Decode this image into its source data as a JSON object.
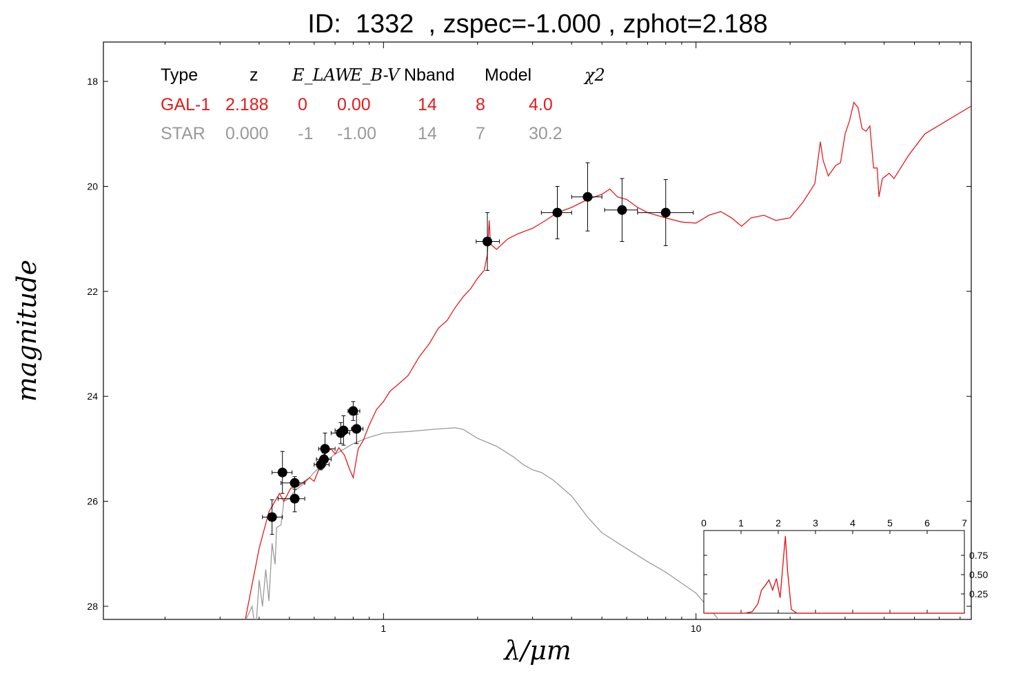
{
  "title": "ID:  1332  , zspec=-1.000 , zphot=2.188",
  "colors": {
    "galaxy": "#e31a1c",
    "star": "#999999",
    "points": "#000000"
  },
  "summary": {
    "headers": [
      "Type",
      "z",
      "E_LAW",
      "E_B-V",
      "Nband",
      "Model",
      "χ2"
    ],
    "rows": [
      {
        "values": [
          "GAL-1",
          "2.188",
          "0",
          "0.00",
          "14",
          "8",
          "4.0"
        ],
        "color": "#e31a1c"
      },
      {
        "values": [
          "STAR",
          "0.000",
          "-1",
          "-1.00",
          "14",
          "7",
          "30.2"
        ],
        "color": "#999999"
      }
    ]
  },
  "chart_data": [
    {
      "type": "line",
      "xlabel": "λ/μm",
      "ylabel": "magnitude",
      "xscale": "log",
      "xlim": [
        0.127,
        76
      ],
      "ylim": [
        28.25,
        17.25
      ],
      "y_inverted": true,
      "xticks": [
        {
          "value": 1,
          "label": "1"
        },
        {
          "value": 10,
          "label": "10"
        }
      ],
      "yticks": [
        18,
        20,
        22,
        24,
        26,
        28
      ],
      "grid": false,
      "series": [
        {
          "role": "galaxy-model",
          "color": "#e31a1c",
          "points": [
            [
              0.36,
              28.3
            ],
            [
              0.4,
              26.9
            ],
            [
              0.43,
              26.2
            ],
            [
              0.465,
              25.85
            ],
            [
              0.48,
              26.0
            ],
            [
              0.505,
              25.75
            ],
            [
              0.53,
              25.72
            ],
            [
              0.55,
              25.65
            ],
            [
              0.58,
              25.55
            ],
            [
              0.6,
              25.62
            ],
            [
              0.62,
              25.4
            ],
            [
              0.65,
              25.1
            ],
            [
              0.68,
              25.0
            ],
            [
              0.7,
              25.1
            ],
            [
              0.72,
              24.98
            ],
            [
              0.75,
              25.12
            ],
            [
              0.78,
              25.4
            ],
            [
              0.8,
              25.55
            ],
            [
              0.83,
              25.0
            ],
            [
              0.86,
              24.85
            ],
            [
              0.9,
              24.55
            ],
            [
              0.95,
              24.25
            ],
            [
              1.0,
              24.1
            ],
            [
              1.05,
              23.9
            ],
            [
              1.1,
              23.8
            ],
            [
              1.2,
              23.6
            ],
            [
              1.3,
              23.25
            ],
            [
              1.4,
              23.0
            ],
            [
              1.5,
              22.7
            ],
            [
              1.6,
              22.55
            ],
            [
              1.7,
              22.3
            ],
            [
              1.8,
              22.1
            ],
            [
              1.9,
              21.95
            ],
            [
              2.0,
              21.75
            ],
            [
              2.1,
              21.6
            ],
            [
              2.15,
              21.3
            ],
            [
              2.18,
              20.65
            ],
            [
              2.2,
              21.1
            ],
            [
              2.3,
              21.2
            ],
            [
              2.5,
              21.0
            ],
            [
              2.7,
              20.9
            ],
            [
              3.0,
              20.8
            ],
            [
              3.3,
              20.65
            ],
            [
              3.6,
              20.5
            ],
            [
              4.0,
              20.4
            ],
            [
              4.5,
              20.25
            ],
            [
              5.0,
              20.15
            ],
            [
              5.3,
              20.05
            ],
            [
              5.6,
              20.2
            ],
            [
              6.0,
              20.25
            ],
            [
              6.5,
              20.4
            ],
            [
              7.0,
              20.5
            ],
            [
              8.0,
              20.6
            ],
            [
              9.0,
              20.68
            ],
            [
              10.0,
              20.7
            ],
            [
              11.0,
              20.55
            ],
            [
              12.0,
              20.48
            ],
            [
              13.0,
              20.6
            ],
            [
              14.0,
              20.76
            ],
            [
              15.0,
              20.6
            ],
            [
              16.5,
              20.55
            ],
            [
              18.0,
              20.65
            ],
            [
              20.0,
              20.6
            ],
            [
              22.0,
              20.3
            ],
            [
              24.0,
              19.95
            ],
            [
              25.0,
              19.15
            ],
            [
              25.5,
              19.5
            ],
            [
              26.5,
              19.8
            ],
            [
              28.0,
              19.6
            ],
            [
              29.0,
              19.55
            ],
            [
              30.0,
              19.0
            ],
            [
              31.0,
              18.75
            ],
            [
              32.0,
              18.4
            ],
            [
              33.0,
              18.5
            ],
            [
              34.0,
              18.9
            ],
            [
              35.0,
              18.95
            ],
            [
              36.0,
              18.85
            ],
            [
              37.0,
              19.65
            ],
            [
              38.0,
              19.65
            ],
            [
              38.5,
              20.2
            ],
            [
              39.5,
              19.85
            ],
            [
              40.5,
              19.8
            ],
            [
              41.5,
              19.75
            ],
            [
              43.0,
              19.85
            ],
            [
              48.0,
              19.4
            ],
            [
              54.0,
              19.0
            ],
            [
              76.0,
              18.47
            ]
          ]
        },
        {
          "role": "star-model",
          "color": "#999999",
          "points": [
            [
              0.36,
              28.3
            ],
            [
              0.38,
              28.0
            ],
            [
              0.39,
              28.5
            ],
            [
              0.4,
              27.5
            ],
            [
              0.41,
              28.0
            ],
            [
              0.42,
              27.3
            ],
            [
              0.43,
              27.9
            ],
            [
              0.44,
              26.8
            ],
            [
              0.45,
              27.2
            ],
            [
              0.455,
              26.5
            ],
            [
              0.47,
              26.45
            ],
            [
              0.48,
              26.0
            ],
            [
              0.5,
              25.95
            ],
            [
              0.52,
              25.8
            ],
            [
              0.56,
              25.65
            ],
            [
              0.6,
              25.45
            ],
            [
              0.65,
              25.25
            ],
            [
              0.7,
              25.1
            ],
            [
              0.75,
              25.0
            ],
            [
              0.8,
              24.9
            ],
            [
              0.9,
              24.78
            ],
            [
              1.0,
              24.7
            ],
            [
              1.2,
              24.67
            ],
            [
              1.5,
              24.62
            ],
            [
              1.7,
              24.6
            ],
            [
              1.8,
              24.63
            ],
            [
              2.0,
              24.8
            ],
            [
              2.3,
              24.95
            ],
            [
              2.6,
              25.15
            ],
            [
              2.8,
              25.3
            ],
            [
              3.0,
              25.4
            ],
            [
              3.2,
              25.45
            ],
            [
              3.5,
              25.6
            ],
            [
              4.0,
              25.9
            ],
            [
              4.5,
              26.3
            ],
            [
              5.0,
              26.6
            ],
            [
              6.0,
              26.9
            ],
            [
              7.0,
              27.15
            ],
            [
              8.0,
              27.35
            ],
            [
              10.0,
              27.75
            ],
            [
              12.0,
              28.3
            ]
          ]
        }
      ]
    },
    {
      "type": "scatter",
      "role": "observed-photometry",
      "color": "#000000",
      "points": [
        {
          "x": 0.44,
          "y": 26.3,
          "xerr": [
            0.41,
            0.475
          ],
          "yerr": 0.33
        },
        {
          "x": 0.475,
          "y": 25.45,
          "xerr": [
            0.44,
            0.51
          ],
          "yerr": 0.4
        },
        {
          "x": 0.52,
          "y": 25.65,
          "xerr": [
            0.47,
            0.56
          ],
          "yerr": 0.12
        },
        {
          "x": 0.52,
          "y": 25.95,
          "xerr": [
            0.46,
            0.56
          ],
          "yerr": 0.25
        },
        {
          "x": 0.63,
          "y": 25.3,
          "xerr": [
            0.6,
            0.67
          ],
          "yerr": 0.1
        },
        {
          "x": 0.645,
          "y": 25.2,
          "xerr": [
            0.61,
            0.68
          ],
          "yerr": 0.12
        },
        {
          "x": 0.65,
          "y": 25.0,
          "xerr": [
            0.62,
            0.7
          ],
          "yerr": 0.3
        },
        {
          "x": 0.73,
          "y": 24.7,
          "xerr": [
            0.68,
            0.78
          ],
          "yerr": 0.2
        },
        {
          "x": 0.745,
          "y": 24.65,
          "xerr": [
            0.7,
            0.8
          ],
          "yerr": 0.28
        },
        {
          "x": 0.8,
          "y": 24.28,
          "xerr": [
            0.77,
            0.84
          ],
          "yerr": 0.18
        },
        {
          "x": 0.82,
          "y": 24.62,
          "xerr": [
            0.79,
            0.86
          ],
          "yerr": 0.28
        },
        {
          "x": 2.15,
          "y": 21.05,
          "xerr": [
            1.98,
            2.35
          ],
          "yerr": 0.55
        },
        {
          "x": 3.6,
          "y": 20.5,
          "xerr": [
            3.2,
            4.0
          ],
          "yerr": 0.5
        },
        {
          "x": 4.5,
          "y": 20.2,
          "xerr": [
            4.0,
            5.0
          ],
          "yerr": 0.65
        },
        {
          "x": 5.8,
          "y": 20.45,
          "xerr": [
            5.1,
            6.5
          ],
          "yerr": 0.6
        },
        {
          "x": 8.0,
          "y": 20.5,
          "xerr": [
            6.5,
            9.8
          ],
          "yerr": 0.63
        }
      ]
    },
    {
      "type": "line",
      "role": "inset-pdz",
      "color": "#e31a1c",
      "xlim": [
        0,
        7
      ],
      "ylim": [
        0,
        1.0
      ],
      "xticks": [
        0,
        1,
        2,
        3,
        4,
        5,
        6,
        7
      ],
      "yticks": [
        0.25,
        0.5,
        0.75
      ],
      "points": [
        [
          0,
          0.0
        ],
        [
          1.1,
          0.0
        ],
        [
          1.3,
          0.02
        ],
        [
          1.45,
          0.12
        ],
        [
          1.55,
          0.3
        ],
        [
          1.65,
          0.36
        ],
        [
          1.75,
          0.43
        ],
        [
          1.85,
          0.3
        ],
        [
          1.95,
          0.45
        ],
        [
          2.05,
          0.2
        ],
        [
          2.12,
          0.6
        ],
        [
          2.19,
          1.0
        ],
        [
          2.25,
          0.55
        ],
        [
          2.35,
          0.05
        ],
        [
          2.5,
          0.0
        ],
        [
          7.0,
          0.0
        ]
      ]
    }
  ]
}
